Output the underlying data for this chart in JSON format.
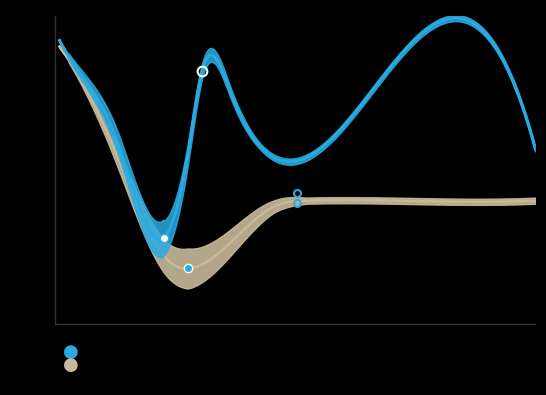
{
  "background_color": "#000000",
  "plot_bg_color": "#000000",
  "legion_color": "#29ABE2",
  "infiniti_color": "#C8B99A",
  "legend_dot_blue": "#29ABE2",
  "legend_dot_tan": "#C8B99A",
  "figsize": [
    5.46,
    3.95
  ],
  "dpi": 100
}
